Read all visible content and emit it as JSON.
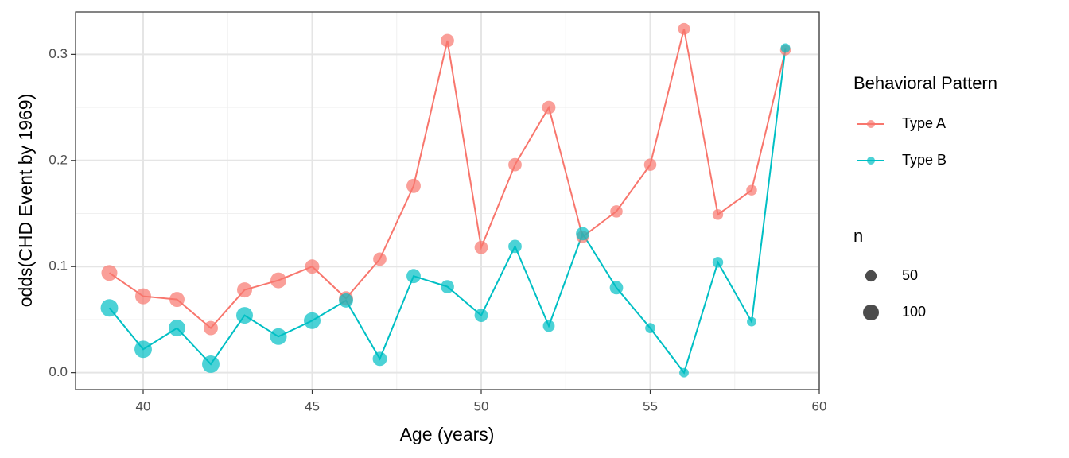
{
  "chart_data": {
    "type": "line",
    "x_label": "Age (years)",
    "y_label": "odds(CHD Event by 1969)",
    "x": [
      39,
      40,
      41,
      42,
      43,
      44,
      45,
      46,
      47,
      48,
      49,
      50,
      51,
      52,
      53,
      54,
      55,
      56,
      57,
      58,
      59
    ],
    "series": [
      {
        "name": "Type A",
        "color": "#F8766D",
        "values": [
          0.094,
          0.072,
          0.069,
          0.042,
          0.078,
          0.087,
          0.1,
          0.07,
          0.107,
          0.176,
          0.313,
          0.118,
          0.196,
          0.25,
          0.128,
          0.152,
          0.196,
          0.324,
          0.149,
          0.172,
          0.304
        ],
        "sizes": [
          100,
          100,
          90,
          80,
          90,
          100,
          80,
          80,
          70,
          80,
          70,
          70,
          70,
          70,
          60,
          60,
          60,
          55,
          45,
          45,
          45
        ]
      },
      {
        "name": "Type B",
        "color": "#00BFC4",
        "values": [
          0.061,
          0.022,
          0.042,
          0.008,
          0.054,
          0.034,
          0.049,
          0.068,
          0.013,
          0.091,
          0.081,
          0.054,
          0.119,
          0.044,
          0.131,
          0.08,
          0.042,
          0.0,
          0.104,
          0.048,
          0.306
        ],
        "sizes": [
          120,
          120,
          110,
          120,
          110,
          110,
          110,
          80,
          80,
          80,
          70,
          70,
          70,
          55,
          70,
          70,
          40,
          35,
          45,
          35,
          35
        ]
      }
    ],
    "legend_title": "Behavioral Pattern",
    "size_legend": {
      "title": "n",
      "values": [
        50,
        100
      ]
    },
    "xlim": [
      38,
      60
    ],
    "xticks": [
      40,
      45,
      50,
      55,
      60
    ],
    "ylim": [
      -0.016,
      0.34
    ],
    "yticks": [
      {
        "value": 0,
        "label": "0.0"
      },
      0.1,
      0.2,
      0.3
    ],
    "x_minor_grid": [
      42.5,
      47.5,
      52.5,
      57.5
    ],
    "y_minor_grid": [
      0.05,
      0.15,
      0.25
    ],
    "grid": true
  }
}
